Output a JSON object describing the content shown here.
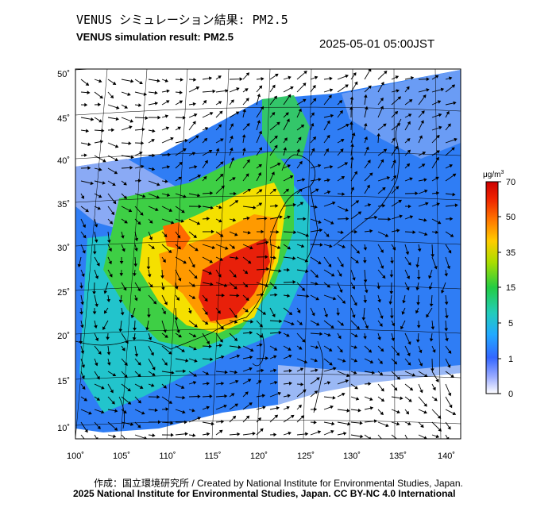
{
  "title_jp": "VENUS シミュレーション結果: PM2.5",
  "title_en": "VENUS simulation result: PM2.5",
  "timestamp": "2025-05-01 05:00JST",
  "map": {
    "lat_ticks": [
      "50˚",
      "45˚",
      "40˚",
      "35˚",
      "30˚",
      "25˚",
      "20˚",
      "15˚",
      "10˚"
    ],
    "lon_ticks": [
      "100˚",
      "105˚",
      "110˚",
      "115˚",
      "120˚",
      "125˚",
      "130˚",
      "135˚",
      "140˚"
    ],
    "lat_range": [
      10,
      50
    ],
    "lon_range": [
      100,
      140
    ]
  },
  "colorbar": {
    "unit_base": "μg/m",
    "unit_sup": "3",
    "labels": [
      "70",
      "50",
      "35",
      "15",
      "5",
      "1",
      "0"
    ],
    "colors": [
      "#cc0000",
      "#ee4400",
      "#ff8800",
      "#ffcc00",
      "#88dd00",
      "#22cc44",
      "#22ccaa",
      "#22aaff",
      "#3377ff",
      "#6688ff",
      "#aabbff",
      "#ffffff"
    ]
  },
  "credit": "作成：国立環境研究所 / Created by National Institute for Environmental Studies, Japan.",
  "copyright": "2025 National Institute for Environmental Studies, Japan. CC BY-NC 4.0 International"
}
